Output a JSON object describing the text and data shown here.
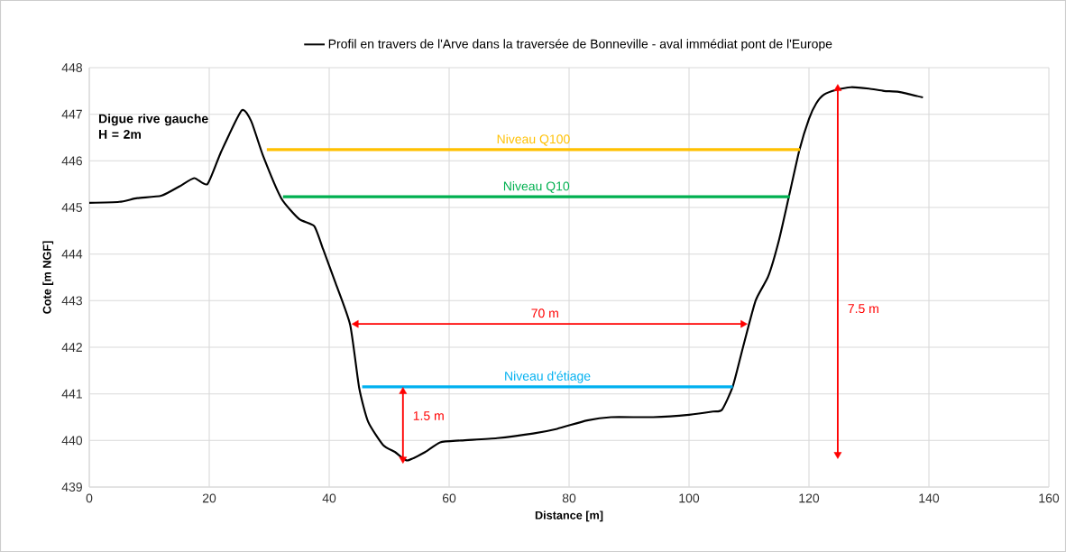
{
  "chart_data": {
    "type": "line",
    "xlabel": "Distance [m]",
    "ylabel": "Cote [m NGF]",
    "xlim": [
      0,
      160
    ],
    "ylim": [
      439,
      448
    ],
    "xticks": [
      0,
      20,
      40,
      60,
      80,
      100,
      120,
      140,
      160
    ],
    "yticks": [
      439,
      440,
      441,
      442,
      443,
      444,
      445,
      446,
      447,
      448
    ],
    "grid": true,
    "legend": "top",
    "marker": "none",
    "line_style": "solid",
    "series": [
      {
        "name": "Profil en travers de l'Arve dans la traversée de Bonneville - aval immédiat pont de l'Europe",
        "color": "#000000",
        "x": [
          0,
          5,
          8,
          12,
          15,
          17.5,
          19.7,
          22,
          25.4,
          27,
          29,
          32,
          35,
          37.5,
          39,
          41,
          43.5,
          45,
          46.5,
          49,
          51,
          53,
          56,
          58.5,
          62,
          68,
          74,
          78,
          83,
          87,
          94,
          100,
          104,
          105.5,
          107.3,
          109,
          111.1,
          113.2,
          115,
          116.7,
          118.4,
          120,
          121.2,
          122.5,
          124.5,
          127,
          130,
          132.5,
          135,
          139
        ],
        "values": [
          445.1,
          445.12,
          445.2,
          445.25,
          445.45,
          445.63,
          445.5,
          446.2,
          447.08,
          446.85,
          446.1,
          445.2,
          444.75,
          444.6,
          444.1,
          443.4,
          442.48,
          441.13,
          440.4,
          439.9,
          439.75,
          439.57,
          439.75,
          439.96,
          440.0,
          440.05,
          440.15,
          440.25,
          440.43,
          440.5,
          440.5,
          440.55,
          440.62,
          440.66,
          441.16,
          442.0,
          443.0,
          443.52,
          444.3,
          445.26,
          446.23,
          446.9,
          447.23,
          447.42,
          447.52,
          447.58,
          447.55,
          447.5,
          447.48,
          447.36
        ]
      },
      {
        "name": "Niveau Q100",
        "color": "#ffc000",
        "x": [
          29.6,
          118.5
        ],
        "values": [
          446.24,
          446.24
        ]
      },
      {
        "name": "Niveau Q10",
        "color": "#00b050",
        "x": [
          32.3,
          116.8
        ],
        "values": [
          445.23,
          445.23
        ]
      },
      {
        "name": "Niveau d'étiage",
        "color": "#00b0f0",
        "x": [
          45.5,
          107.3
        ],
        "values": [
          441.15,
          441.15
        ]
      },
      {
        "color": "#ff0000",
        "marker": "triangle",
        "x": [
          44.5,
          109
        ],
        "values": [
          442.5,
          442.5
        ]
      },
      {
        "color": "#ff0000",
        "marker": "triangle",
        "x": [
          52.3,
          52.3
        ],
        "values": [
          439.6,
          441.05
        ]
      },
      {
        "color": "#ff0000",
        "marker": "triangle",
        "x": [
          124.8,
          124.8
        ],
        "values": [
          439.7,
          447.55
        ]
      }
    ],
    "annotations": [
      "Digue rive gauche H = 2m",
      {
        "text": "70 m",
        "x": 72,
        "y": 442.5
      },
      {
        "text": "1.5 m",
        "x": 52.3,
        "y": 440.3
      },
      {
        "text": "7.5 m",
        "x": 124.8,
        "y": 442.6
      }
    ]
  }
}
